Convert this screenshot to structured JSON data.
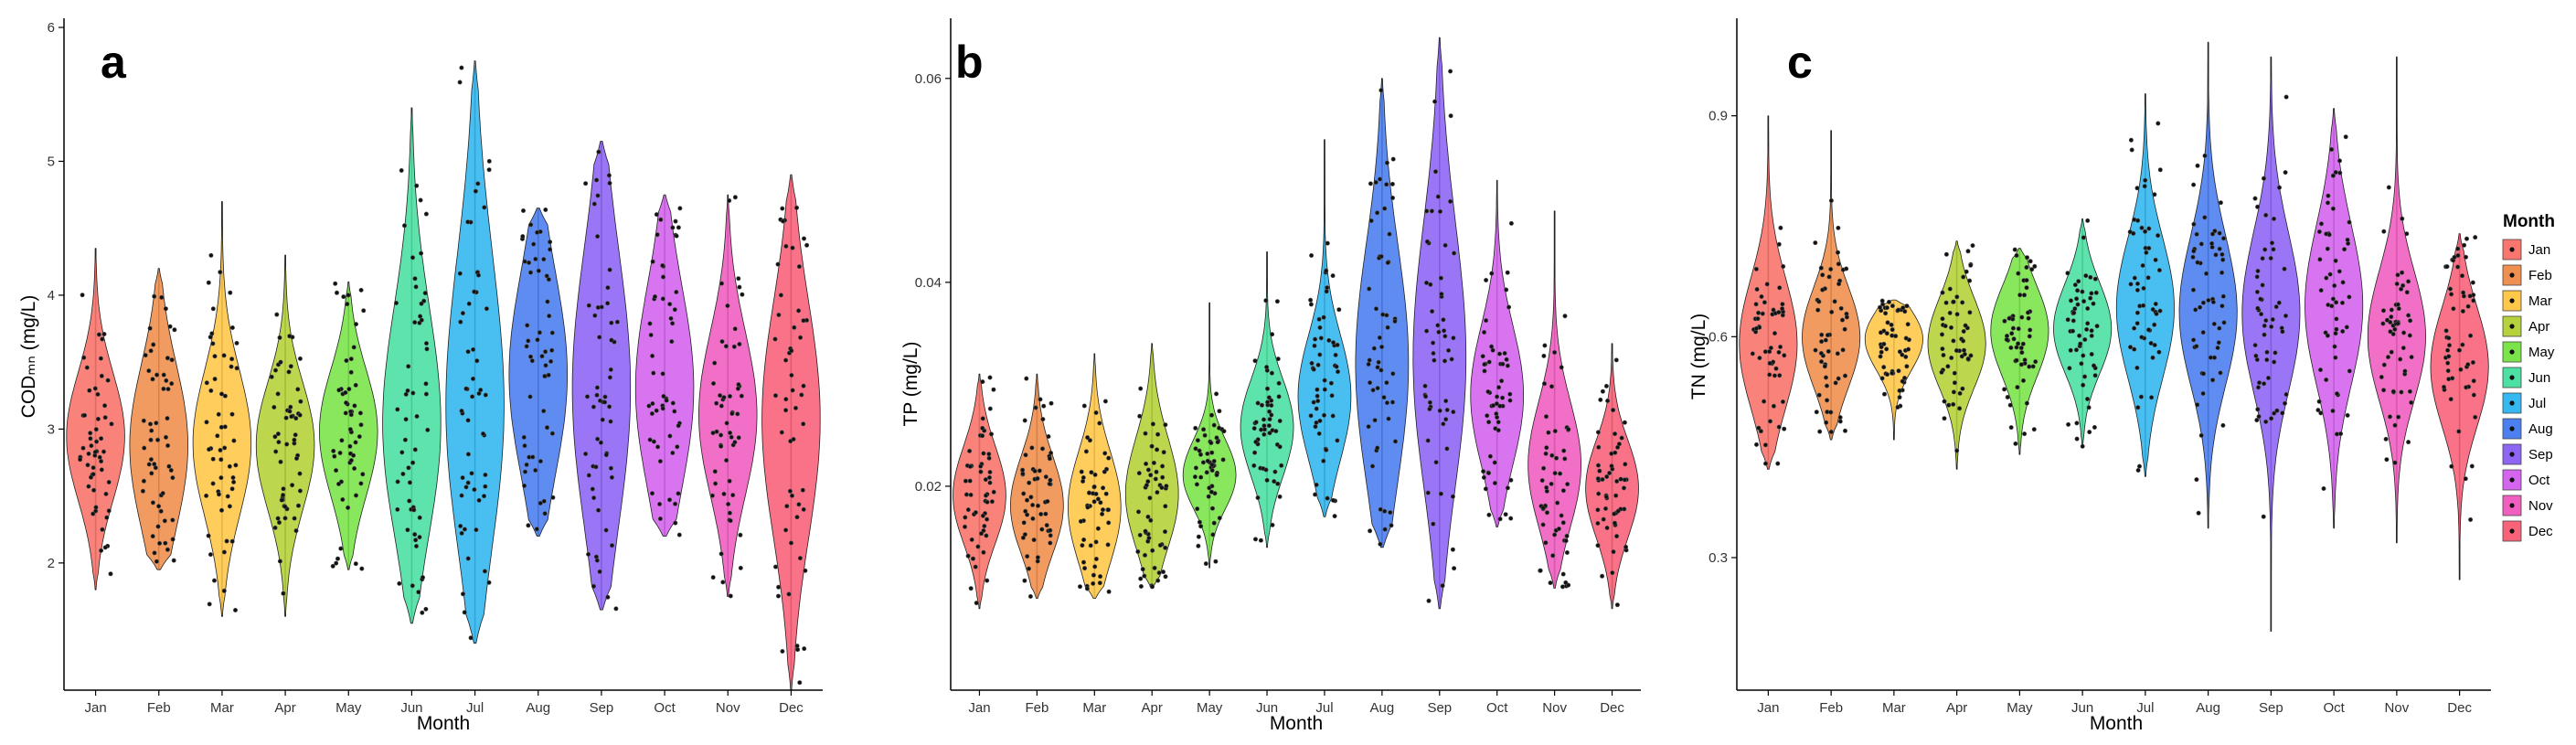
{
  "legend": {
    "title": "Month",
    "position": "right"
  },
  "months": [
    "Jan",
    "Feb",
    "Mar",
    "Apr",
    "May",
    "Jun",
    "Jul",
    "Aug",
    "Sep",
    "Oct",
    "Nov",
    "Dec"
  ],
  "month_colors": [
    "#F8766D",
    "#F09050",
    "#FFC84A",
    "#B5D13B",
    "#7CE44B",
    "#4DE0A3",
    "#35B8F0",
    "#4C7FF0",
    "#8F66F4",
    "#D565EE",
    "#F05FC0",
    "#F8637A"
  ],
  "chart_data": [
    {
      "type": "violin",
      "panel": "a",
      "xlabel": "Month",
      "ylabel": "CODₘₙ (mg/L)",
      "categories": [
        "Jan",
        "Feb",
        "Mar",
        "Apr",
        "May",
        "Jun",
        "Jul",
        "Aug",
        "Sep",
        "Oct",
        "Nov",
        "Dec"
      ],
      "ylim": [
        1.05,
        6.0
      ],
      "yticks": [
        2,
        3,
        4,
        5,
        6
      ],
      "ytick_labels": [
        "2",
        "3",
        "4",
        "5",
        "6"
      ],
      "series": [
        {
          "min": 1.8,
          "max": 4.35,
          "q1": 2.6,
          "median": 2.95,
          "q3": 3.3
        },
        {
          "min": 1.95,
          "max": 4.2,
          "q1": 2.4,
          "median": 2.9,
          "q3": 3.3
        },
        {
          "min": 1.6,
          "max": 4.7,
          "q1": 2.5,
          "median": 2.9,
          "q3": 3.3
        },
        {
          "min": 1.6,
          "max": 4.3,
          "q1": 2.5,
          "median": 2.9,
          "q3": 3.2
        },
        {
          "min": 1.95,
          "max": 4.1,
          "q1": 2.6,
          "median": 3.0,
          "q3": 3.3
        },
        {
          "min": 1.55,
          "max": 5.4,
          "q1": 2.55,
          "median": 3.0,
          "q3": 3.8
        },
        {
          "min": 1.4,
          "max": 5.75,
          "q1": 2.6,
          "median": 3.1,
          "q3": 4.2
        },
        {
          "min": 2.2,
          "max": 4.65,
          "q1": 2.9,
          "median": 3.4,
          "q3": 4.0
        },
        {
          "min": 1.65,
          "max": 5.15,
          "q1": 2.6,
          "median": 3.3,
          "q3": 4.1
        },
        {
          "min": 2.2,
          "max": 4.75,
          "q1": 2.8,
          "median": 3.3,
          "q3": 3.9
        },
        {
          "min": 1.75,
          "max": 4.75,
          "q1": 2.7,
          "median": 3.1,
          "q3": 3.6
        },
        {
          "min": 1.05,
          "max": 4.9,
          "q1": 2.4,
          "median": 3.1,
          "q3": 3.7
        }
      ]
    },
    {
      "type": "violin",
      "panel": "b",
      "xlabel": "Month",
      "ylabel": "TP (mg/L)",
      "categories": [
        "Jan",
        "Feb",
        "Mar",
        "Apr",
        "May",
        "Jun",
        "Jul",
        "Aug",
        "Sep",
        "Oct",
        "Nov",
        "Dec"
      ],
      "ylim": [
        0.0,
        0.065
      ],
      "yticks": [
        0.02,
        0.04,
        0.06
      ],
      "ytick_labels": [
        "0.02",
        "0.04",
        "0.06"
      ],
      "series": [
        {
          "min": 0.008,
          "max": 0.031,
          "q1": 0.016,
          "median": 0.019,
          "q3": 0.023
        },
        {
          "min": 0.009,
          "max": 0.031,
          "q1": 0.015,
          "median": 0.018,
          "q3": 0.022
        },
        {
          "min": 0.009,
          "max": 0.033,
          "q1": 0.014,
          "median": 0.018,
          "q3": 0.022
        },
        {
          "min": 0.01,
          "max": 0.034,
          "q1": 0.016,
          "median": 0.019,
          "q3": 0.024
        },
        {
          "min": 0.012,
          "max": 0.038,
          "q1": 0.019,
          "median": 0.021,
          "q3": 0.024
        },
        {
          "min": 0.014,
          "max": 0.043,
          "q1": 0.022,
          "median": 0.026,
          "q3": 0.029
        },
        {
          "min": 0.017,
          "max": 0.054,
          "q1": 0.024,
          "median": 0.029,
          "q3": 0.033
        },
        {
          "min": 0.014,
          "max": 0.06,
          "q1": 0.024,
          "median": 0.032,
          "q3": 0.041
        },
        {
          "min": 0.008,
          "max": 0.064,
          "q1": 0.025,
          "median": 0.032,
          "q3": 0.044
        },
        {
          "min": 0.016,
          "max": 0.05,
          "q1": 0.024,
          "median": 0.029,
          "q3": 0.034
        },
        {
          "min": 0.01,
          "max": 0.047,
          "q1": 0.018,
          "median": 0.022,
          "q3": 0.027
        },
        {
          "min": 0.008,
          "max": 0.034,
          "q1": 0.016,
          "median": 0.02,
          "q3": 0.023
        }
      ]
    },
    {
      "type": "violin",
      "panel": "c",
      "xlabel": "Month",
      "ylabel": "TN (mg/L)",
      "categories": [
        "Jan",
        "Feb",
        "Mar",
        "Apr",
        "May",
        "Jun",
        "Jul",
        "Aug",
        "Sep",
        "Oct",
        "Nov",
        "Dec"
      ],
      "ylim": [
        0.12,
        1.02
      ],
      "yticks": [
        0.3,
        0.6,
        0.9
      ],
      "ytick_labels": [
        "0.3",
        "0.6",
        "0.9"
      ],
      "series": [
        {
          "min": 0.42,
          "max": 0.9,
          "q1": 0.53,
          "median": 0.59,
          "q3": 0.66
        },
        {
          "min": 0.46,
          "max": 0.88,
          "q1": 0.55,
          "median": 0.6,
          "q3": 0.65
        },
        {
          "min": 0.46,
          "max": 0.65,
          "q1": 0.56,
          "median": 0.6,
          "q3": 0.62
        },
        {
          "min": 0.42,
          "max": 0.73,
          "q1": 0.55,
          "median": 0.59,
          "q3": 0.64
        },
        {
          "min": 0.44,
          "max": 0.72,
          "q1": 0.56,
          "median": 0.61,
          "q3": 0.65
        },
        {
          "min": 0.45,
          "max": 0.76,
          "q1": 0.57,
          "median": 0.61,
          "q3": 0.66
        },
        {
          "min": 0.41,
          "max": 0.93,
          "q1": 0.57,
          "median": 0.64,
          "q3": 0.71
        },
        {
          "min": 0.34,
          "max": 1.0,
          "q1": 0.57,
          "median": 0.63,
          "q3": 0.72
        },
        {
          "min": 0.2,
          "max": 0.98,
          "q1": 0.56,
          "median": 0.63,
          "q3": 0.72
        },
        {
          "min": 0.34,
          "max": 0.91,
          "q1": 0.57,
          "median": 0.64,
          "q3": 0.73
        },
        {
          "min": 0.32,
          "max": 0.98,
          "q1": 0.54,
          "median": 0.6,
          "q3": 0.67
        },
        {
          "min": 0.27,
          "max": 0.74,
          "q1": 0.5,
          "median": 0.56,
          "q3": 0.62
        }
      ]
    }
  ]
}
